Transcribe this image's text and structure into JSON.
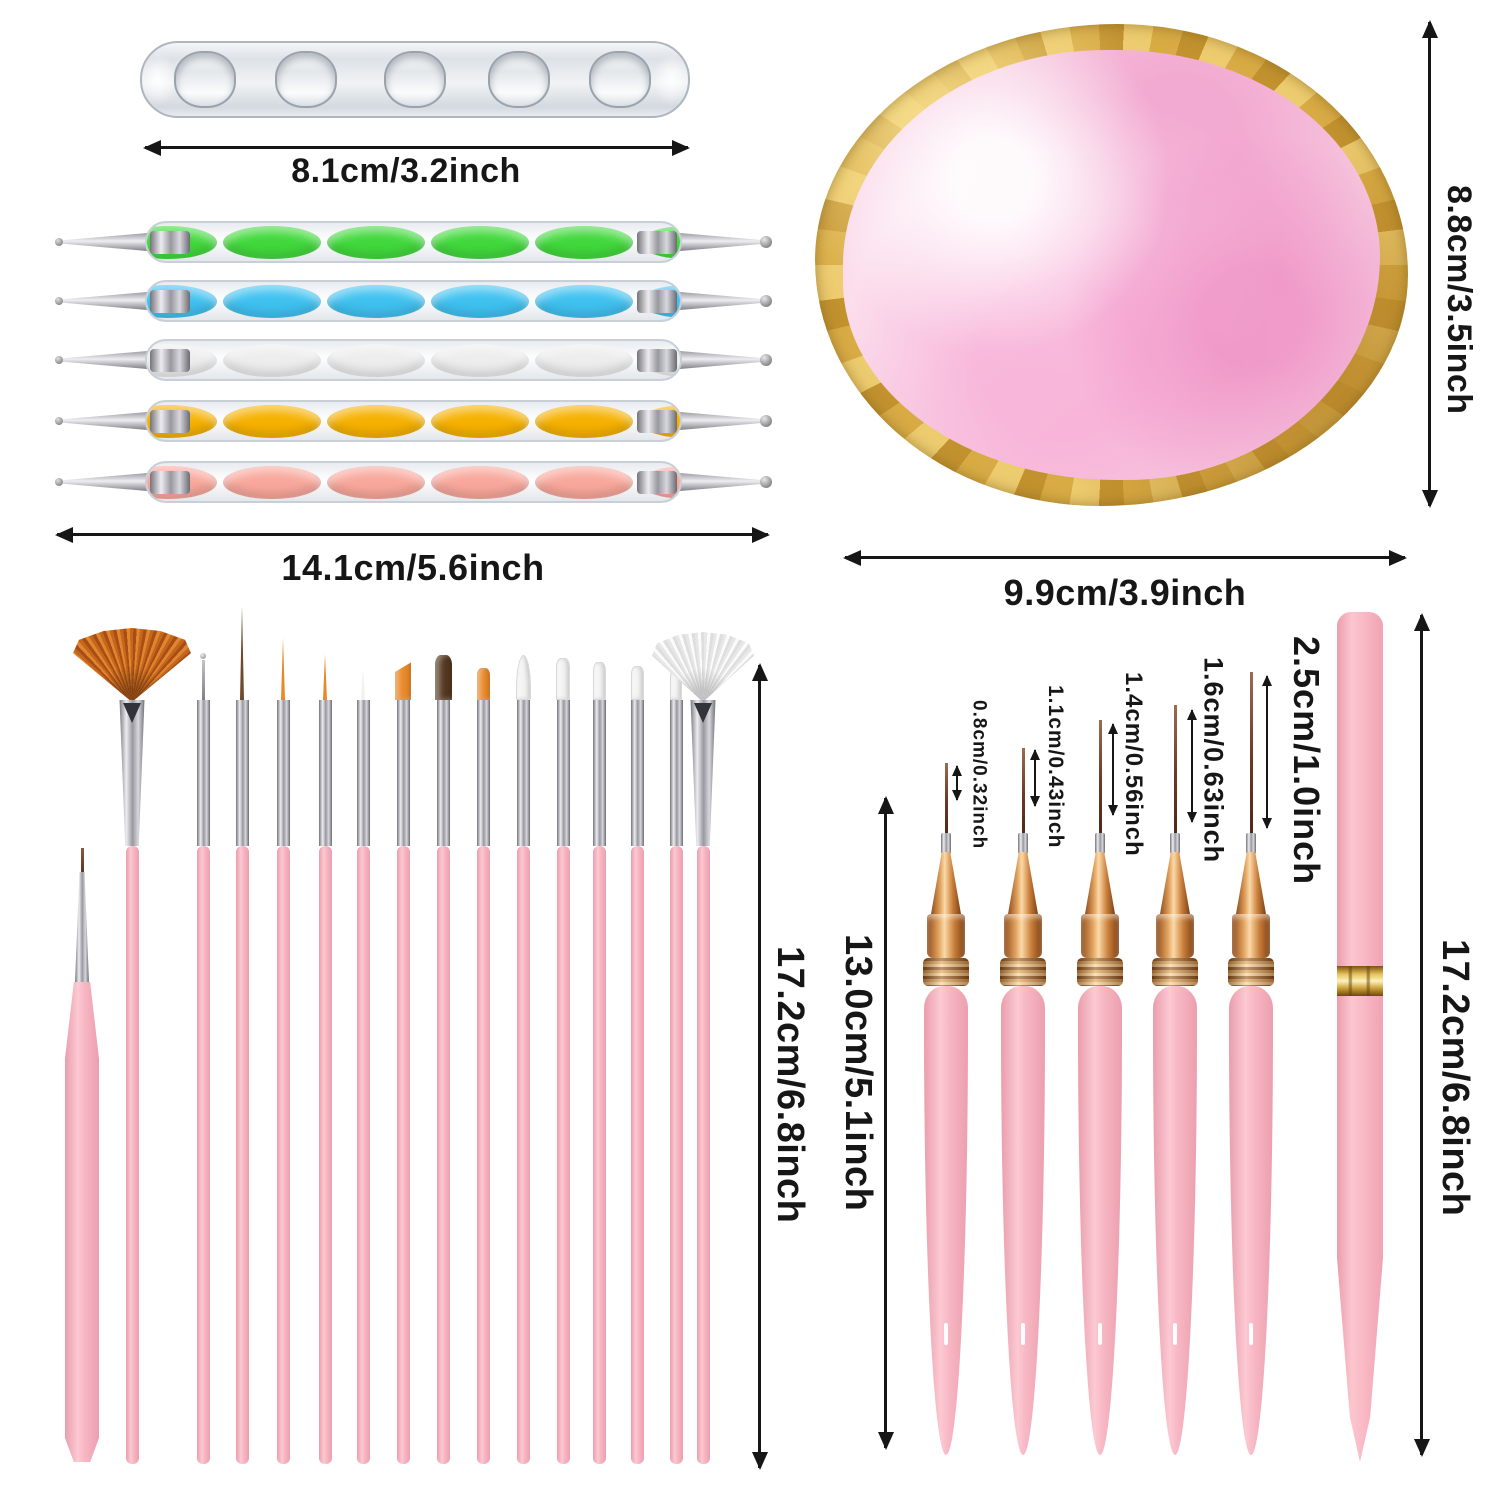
{
  "dimensions": {
    "holder_width": "8.1cm/3.2inch",
    "dotting_pen_length": "14.1cm/5.6inch",
    "palette_height": "8.8cm/3.5inch",
    "palette_width": "9.9cm/3.9inch",
    "brush_length": "17.2cm/6.8inch",
    "liner_handle_length": "13.0cm/5.1inch",
    "gel_pen_length": "17.2cm/6.8inch",
    "liner_tip_lengths": [
      "0.8cm/0.32inch",
      "1.1cm/0.43inch",
      "1.4cm/0.56inch",
      "1.6cm/0.63inch",
      "2.5cm/1.0inch"
    ]
  },
  "colors": {
    "arrow": "#161616",
    "handle_pink": "#f7b6c3",
    "rose_gold": "#d08540",
    "silver": "#c9c9ce",
    "gold_rim": "#d2a342",
    "palette_pink": "#f6c6de"
  },
  "products": {
    "holder": {
      "kind": "clear acrylic brush rest",
      "slots": 5
    },
    "dotting_pens": [
      {
        "swirl": "green",
        "hex": "#41d83c"
      },
      {
        "swirl": "blue",
        "hex": "#3fc1f0"
      },
      {
        "swirl": "white",
        "hex": "#ededed"
      },
      {
        "swirl": "yellow",
        "hex": "#f6b100"
      },
      {
        "swirl": "pink",
        "hex": "#f8a79b"
      }
    ],
    "palette": {
      "kind": "round resin palette with gold rim"
    },
    "brushes": [
      {
        "kind": "fan",
        "bristle": "#c96a1e"
      },
      {
        "kind": "dotting-tip",
        "bristle": "#9a9aa2"
      },
      {
        "kind": "liner",
        "bristle": "#6f4a2f"
      },
      {
        "kind": "liner",
        "bristle": "#e8882a"
      },
      {
        "kind": "liner",
        "bristle": "#e8882a"
      },
      {
        "kind": "liner",
        "bristle": "#f1f1f1"
      },
      {
        "kind": "flat-angled",
        "bristle": "#e8882a"
      },
      {
        "kind": "flat",
        "bristle": "#53371f"
      },
      {
        "kind": "flat",
        "bristle": "#e8882a"
      },
      {
        "kind": "flat-pointed",
        "bristle": "#f2f2f2"
      },
      {
        "kind": "flat",
        "bristle": "#f2f2f2"
      },
      {
        "kind": "flat",
        "bristle": "#f2f2f2"
      },
      {
        "kind": "flat",
        "bristle": "#f2f2f2"
      },
      {
        "kind": "flat",
        "bristle": "#f2f2f2"
      },
      {
        "kind": "fan",
        "bristle": "#efefef"
      }
    ],
    "detail_brush": {
      "kind": "short liner brush",
      "bristle": "#6b3a2a"
    },
    "liner_brushes": {
      "count": 5,
      "ferrule": "rose-gold"
    },
    "gel_pen": {
      "kind": "capped liner pen",
      "ring": "gold"
    }
  }
}
